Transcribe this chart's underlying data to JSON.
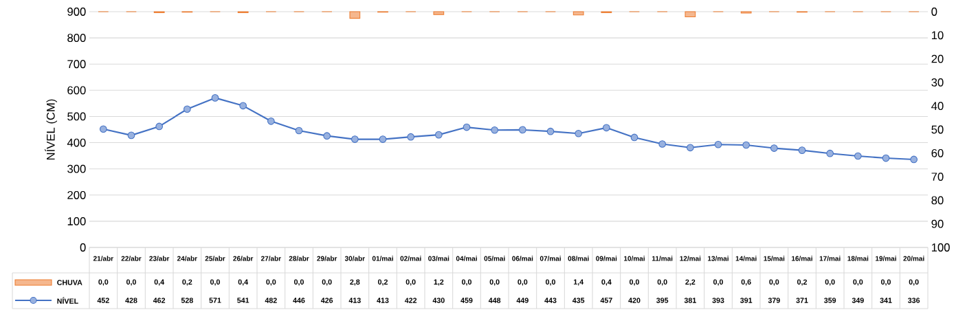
{
  "chart_data": {
    "type": "bar",
    "ylabel": "NÍVEL (CM)",
    "categories": [
      "21/abr",
      "22/abr",
      "23/abr",
      "24/abr",
      "25/abr",
      "26/abr",
      "27/abr",
      "28/abr",
      "29/abr",
      "30/abr",
      "01/mai",
      "02/mai",
      "03/mai",
      "04/mai",
      "05/mai",
      "06/mai",
      "07/mai",
      "08/mai",
      "09/mai",
      "10/mai",
      "11/mai",
      "12/mai",
      "13/mai",
      "14/mai",
      "15/mai",
      "16/mai",
      "17/mai",
      "18/mai",
      "19/mai",
      "20/mai"
    ],
    "series": [
      {
        "name": "CHUVA",
        "axis": "y2",
        "color": "#ed7d31",
        "values": [
          0.0,
          0.0,
          0.4,
          0.2,
          0.0,
          0.4,
          0.0,
          0.0,
          0.0,
          2.8,
          0.2,
          0.0,
          1.2,
          0.0,
          0.0,
          0.0,
          0.0,
          1.4,
          0.4,
          0.0,
          0.0,
          2.2,
          0.0,
          0.6,
          0.0,
          0.2,
          0.0,
          0.0,
          0.0,
          0.0
        ],
        "value_labels": [
          "0,0",
          "0,0",
          "0,4",
          "0,2",
          "0,0",
          "0,4",
          "0,0",
          "0,0",
          "0,0",
          "2,8",
          "0,2",
          "0,0",
          "1,2",
          "0,0",
          "0,0",
          "0,0",
          "0,0",
          "1,4",
          "0,4",
          "0,0",
          "0,0",
          "2,2",
          "0,0",
          "0,6",
          "0,0",
          "0,2",
          "0,0",
          "0,0",
          "0,0",
          "0,0"
        ]
      },
      {
        "name": "NÍVEL",
        "type": "line",
        "marker": "circle",
        "color": "#4472c4",
        "values": [
          452,
          428,
          462,
          528,
          571,
          541,
          482,
          446,
          426,
          413,
          413,
          422,
          430,
          459,
          448,
          449,
          443,
          435,
          457,
          420,
          395,
          381,
          393,
          391,
          379,
          371,
          359,
          349,
          341,
          336
        ],
        "value_labels": [
          "452",
          "428",
          "462",
          "528",
          "571",
          "541",
          "482",
          "446",
          "426",
          "413",
          "413",
          "422",
          "430",
          "459",
          "448",
          "449",
          "443",
          "435",
          "457",
          "420",
          "395",
          "381",
          "393",
          "391",
          "379",
          "371",
          "359",
          "349",
          "341",
          "336"
        ]
      }
    ],
    "ylim": [
      0,
      900
    ],
    "yticks": [
      0,
      100,
      200,
      300,
      400,
      500,
      600,
      700,
      800,
      900
    ],
    "y2lim": [
      100,
      0
    ],
    "y2ticks": [
      0,
      10,
      20,
      30,
      40,
      50,
      60,
      70,
      80,
      90,
      100
    ],
    "grid": "y",
    "legend": "bottom"
  }
}
